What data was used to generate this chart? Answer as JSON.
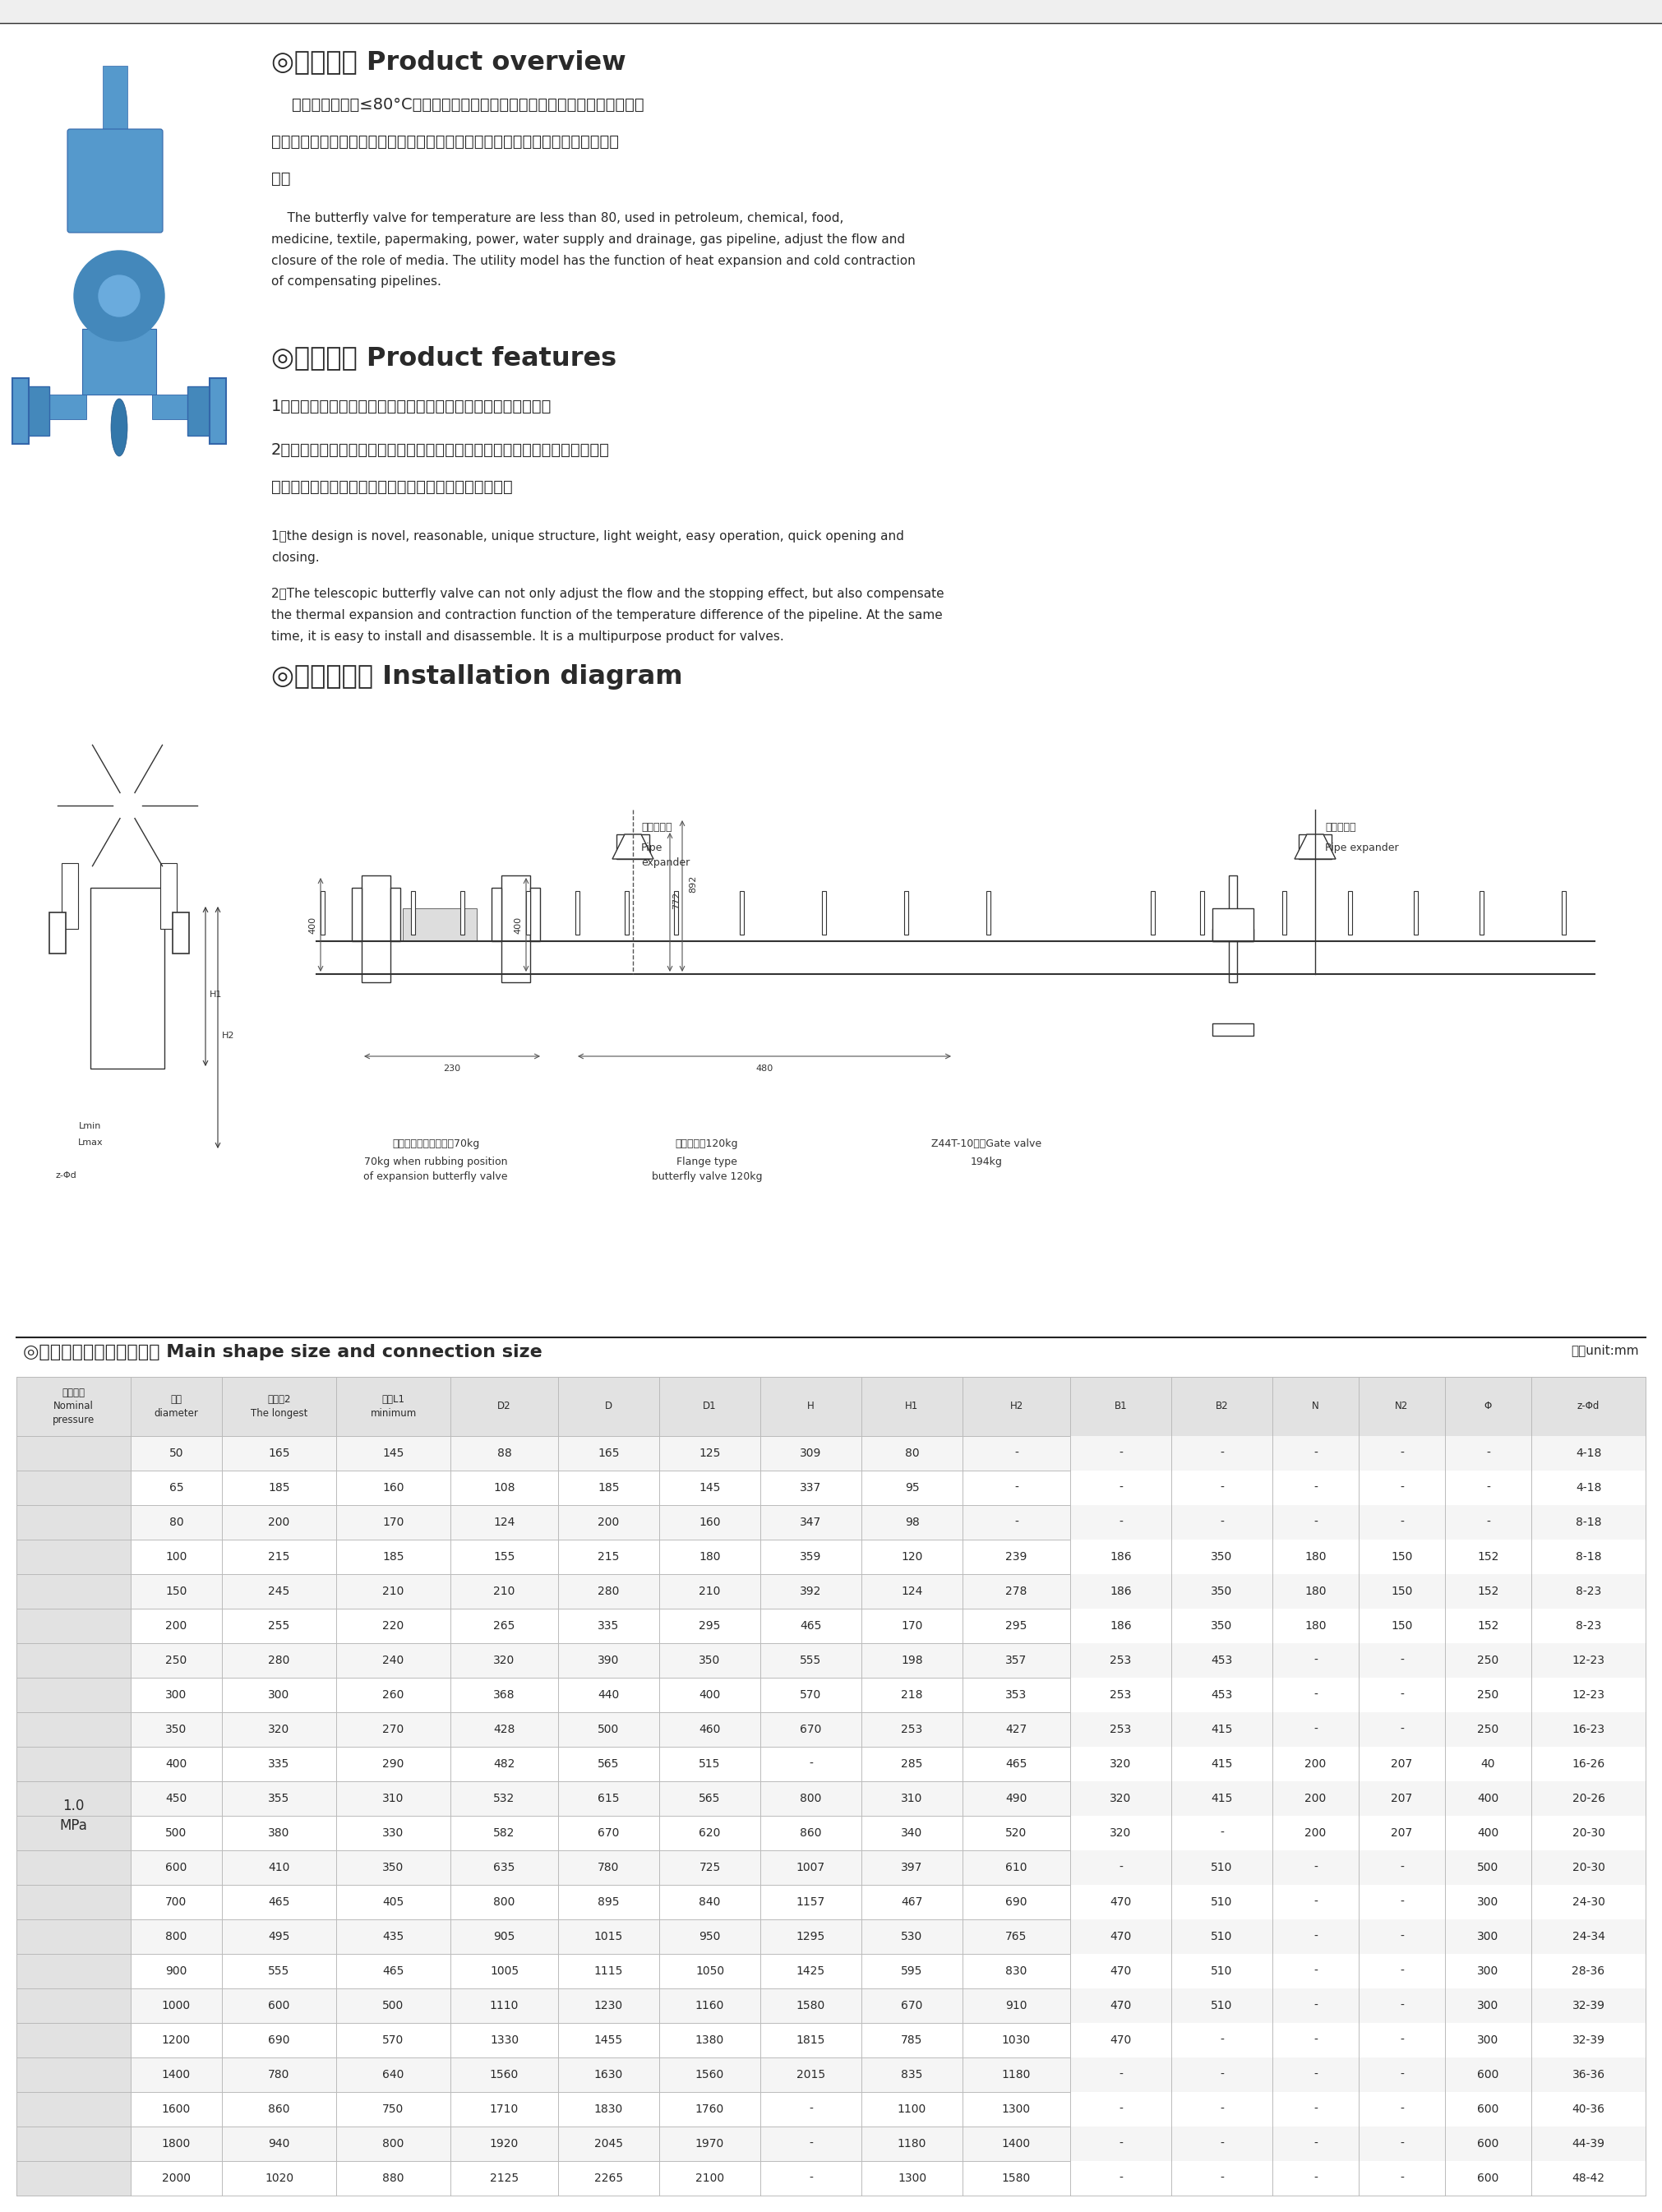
{
  "bg_color": "#ffffff",
  "header_bg": "#efefef",
  "title_color": "#2a2a2a",
  "text_color": "#2a2a2a",
  "table_header_bg": "#e2e2e2",
  "table_row_alt": "#f5f5f5",
  "table_border": "#bbbbbb",
  "section1_title": "◎产品概述 Product overview",
  "section1_cn_line1": "    本蝶阀适用温度≤80°C，用于石油、化工、食品、医药、轻纺、造纸、电力、",
  "section1_cn_line2": "给排水、气体管路上，作调节流量和截流介质的作用。具有补偿管道热胀冷缩的功",
  "section1_cn_line3": "能。",
  "section1_en": "    The butterfly valve for temperature are less than 80, used in petroleum, chemical, food,\nmedicine, textile, papermaking, power, water supply and drainage, gas pipeline, adjust the flow and\nclosure of the role of media. The utility model has the function of heat expansion and cold contraction\nof compensating pipelines.",
  "section2_title": "◎产品特点 Product features",
  "section2_cn1": "1、设计新颌、合理、结构独特、重量轻、操作方便、启闭迅速。",
  "section2_cn2a": "2、本伸缩蝶阀既能起到调节流量和截流作用，又能补偿管道温差，所产生的热",
  "section2_cn2b": "胀冷缩功能，同时也便于安装和拆卸，为一阀多用产品。",
  "section2_en1": "1、the design is novel, reasonable, unique structure, light weight, easy operation, quick opening and\nclosing.",
  "section2_en2": "2．The telescopic butterfly valve can not only adjust the flow and the stopping effect, but also compensate\nthe thermal expansion and contraction function of the temperature difference of the pipeline. At the same\ntime, it is easy to install and disassemble. It is a multipurpose product for valves.",
  "section3_title": "◎安装示意图 Installation diagram",
  "table_section_title": "◎主要外形尺寸和连接尺寸 Main shape size and connection size",
  "table_unit": "单位unit:mm",
  "pressure_label": "1.0\nMPa",
  "table_data": [
    [
      "50",
      "165",
      "145",
      "88",
      "165",
      "125",
      "309",
      "80",
      "-",
      "-",
      "-",
      "-",
      "-",
      "-",
      "4-18"
    ],
    [
      "65",
      "185",
      "160",
      "108",
      "185",
      "145",
      "337",
      "95",
      "-",
      "-",
      "-",
      "-",
      "-",
      "-",
      "4-18"
    ],
    [
      "80",
      "200",
      "170",
      "124",
      "200",
      "160",
      "347",
      "98",
      "-",
      "-",
      "-",
      "-",
      "-",
      "-",
      "8-18"
    ],
    [
      "100",
      "215",
      "185",
      "155",
      "215",
      "180",
      "359",
      "120",
      "239",
      "186",
      "350",
      "180",
      "150",
      "152",
      "8-18"
    ],
    [
      "150",
      "245",
      "210",
      "210",
      "280",
      "210",
      "392",
      "124",
      "278",
      "186",
      "350",
      "180",
      "150",
      "152",
      "8-23"
    ],
    [
      "200",
      "255",
      "220",
      "265",
      "335",
      "295",
      "465",
      "170",
      "295",
      "186",
      "350",
      "180",
      "150",
      "152",
      "8-23"
    ],
    [
      "250",
      "280",
      "240",
      "320",
      "390",
      "350",
      "555",
      "198",
      "357",
      "253",
      "453",
      "-",
      "-",
      "250",
      "12-23"
    ],
    [
      "300",
      "300",
      "260",
      "368",
      "440",
      "400",
      "570",
      "218",
      "353",
      "253",
      "453",
      "-",
      "-",
      "250",
      "12-23"
    ],
    [
      "350",
      "320",
      "270",
      "428",
      "500",
      "460",
      "670",
      "253",
      "427",
      "253",
      "415",
      "-",
      "-",
      "250",
      "16-23"
    ],
    [
      "400",
      "335",
      "290",
      "482",
      "565",
      "515",
      "-",
      "285",
      "465",
      "320",
      "415",
      "200",
      "207",
      "40",
      "16-26"
    ],
    [
      "450",
      "355",
      "310",
      "532",
      "615",
      "565",
      "800",
      "310",
      "490",
      "320",
      "415",
      "200",
      "207",
      "400",
      "20-26"
    ],
    [
      "500",
      "380",
      "330",
      "582",
      "670",
      "620",
      "860",
      "340",
      "520",
      "320",
      "-",
      "200",
      "207",
      "400",
      "20-30"
    ],
    [
      "600",
      "410",
      "350",
      "635",
      "780",
      "725",
      "1007",
      "397",
      "610",
      "-",
      "510",
      "-",
      "-",
      "500",
      "20-30"
    ],
    [
      "700",
      "465",
      "405",
      "800",
      "895",
      "840",
      "1157",
      "467",
      "690",
      "470",
      "510",
      "-",
      "-",
      "300",
      "24-30"
    ],
    [
      "800",
      "495",
      "435",
      "905",
      "1015",
      "950",
      "1295",
      "530",
      "765",
      "470",
      "510",
      "-",
      "-",
      "300",
      "24-34"
    ],
    [
      "900",
      "555",
      "465",
      "1005",
      "1115",
      "1050",
      "1425",
      "595",
      "830",
      "470",
      "510",
      "-",
      "-",
      "300",
      "28-36"
    ],
    [
      "1000",
      "600",
      "500",
      "1110",
      "1230",
      "1160",
      "1580",
      "670",
      "910",
      "470",
      "510",
      "-",
      "-",
      "300",
      "32-39"
    ],
    [
      "1200",
      "690",
      "570",
      "1330",
      "1455",
      "1380",
      "1815",
      "785",
      "1030",
      "470",
      "-",
      "-",
      "-",
      "300",
      "32-39"
    ],
    [
      "1400",
      "780",
      "640",
      "1560",
      "1630",
      "1560",
      "2015",
      "835",
      "1180",
      "-",
      "-",
      "-",
      "-",
      "600",
      "36-36"
    ],
    [
      "1600",
      "860",
      "750",
      "1710",
      "1830",
      "1760",
      "-",
      "1100",
      "1300",
      "-",
      "-",
      "-",
      "-",
      "600",
      "40-36"
    ],
    [
      "1800",
      "940",
      "800",
      "1920",
      "2045",
      "1970",
      "-",
      "1180",
      "1400",
      "-",
      "-",
      "-",
      "-",
      "600",
      "44-39"
    ],
    [
      "2000",
      "1020",
      "880",
      "2125",
      "2265",
      "2100",
      "-",
      "1300",
      "1580",
      "-",
      "-",
      "-",
      "-",
      "600",
      "48-42"
    ]
  ]
}
